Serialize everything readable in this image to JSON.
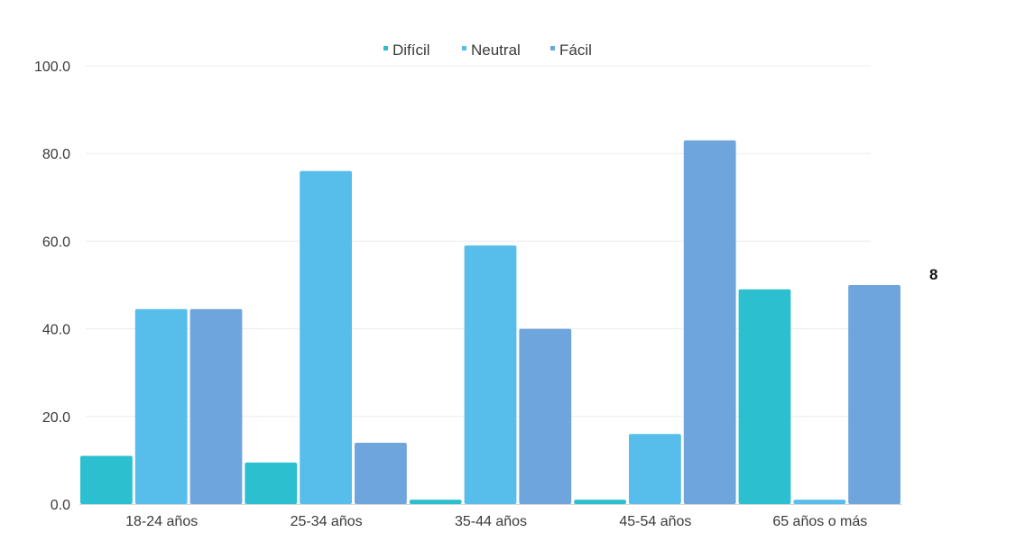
{
  "chart_data": {
    "type": "bar",
    "title": "",
    "xlabel": "",
    "ylabel": "",
    "ylim": [
      0,
      100
    ],
    "yticks": [
      "0.0",
      "20.0",
      "40.0",
      "60.0",
      "80.0",
      "100.0"
    ],
    "ytick_values": [
      0,
      20,
      40,
      60,
      80,
      100
    ],
    "grid": true,
    "legend_position": "top-center",
    "categories": [
      "18-24 años",
      "25-34 años",
      "35-44 años",
      "45-54 años",
      "65 años o más"
    ],
    "series": [
      {
        "name": "Difícil",
        "color": "#2cbfcf",
        "values": [
          11,
          9.5,
          1,
          1,
          49
        ]
      },
      {
        "name": "Neutral",
        "color": "#57bdea",
        "values": [
          44.5,
          76,
          59,
          16,
          1
        ]
      },
      {
        "name": "Fácil",
        "color": "#6ea5dc",
        "values": [
          44.5,
          14,
          40,
          83,
          50
        ]
      }
    ],
    "annotation": "8"
  }
}
